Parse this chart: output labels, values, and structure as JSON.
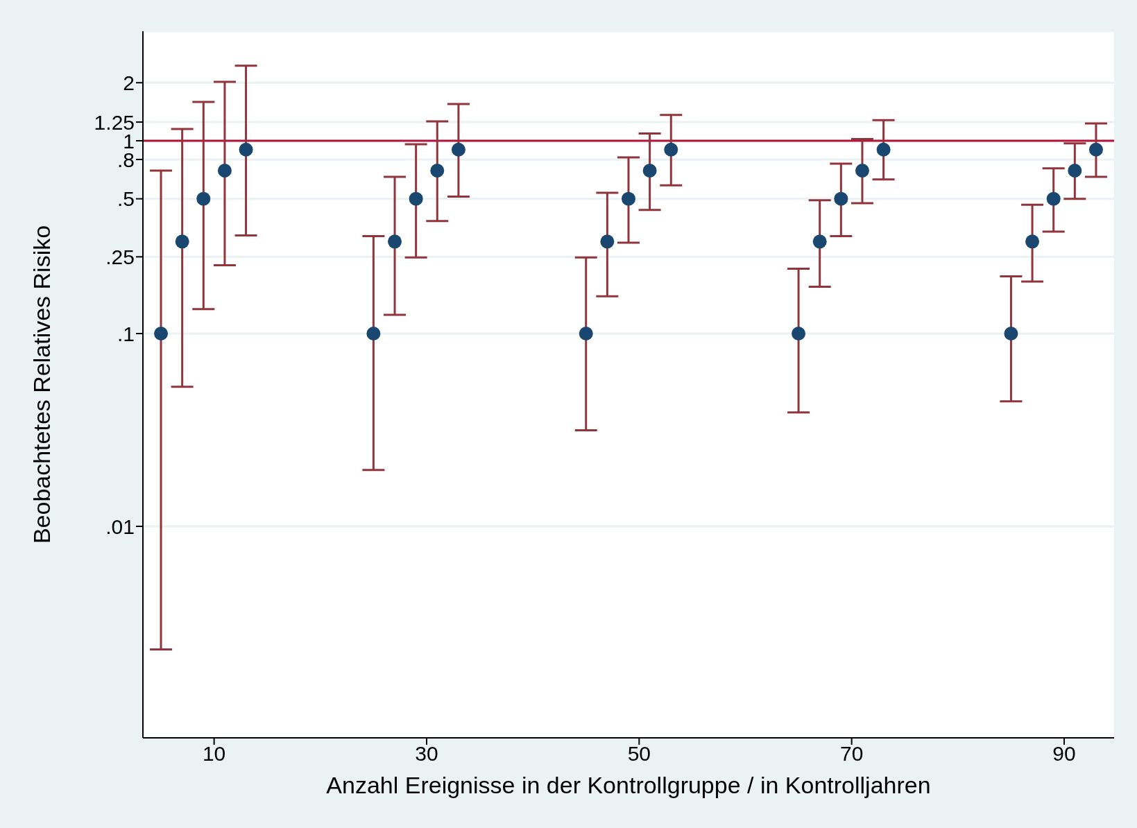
{
  "chart_data": {
    "type": "scatter",
    "xlabel": "Anzahl Ereignisse in der Kontrollgruppe / in Kontrolljahren",
    "ylabel": "Beobachtetes Relatives Risiko",
    "x": [
      5,
      7,
      9,
      11,
      13,
      25,
      27,
      29,
      31,
      33,
      45,
      47,
      49,
      51,
      53,
      65,
      67,
      69,
      71,
      73,
      85,
      87,
      89,
      91,
      93
    ],
    "series": [
      {
        "color": "#1a476f",
        "values": [
          0.1,
          0.3,
          0.5,
          0.7,
          0.9,
          0.1,
          0.3,
          0.5,
          0.7,
          0.9,
          0.1,
          0.3,
          0.5,
          0.7,
          0.9,
          0.1,
          0.3,
          0.5,
          0.7,
          0.9,
          0.1,
          0.3,
          0.5,
          0.7,
          0.9
        ],
        "errors": [
          [
            0.0023,
            0.7
          ],
          [
            0.053,
            1.15
          ],
          [
            0.134,
            1.59
          ],
          [
            0.226,
            2.02
          ],
          [
            0.323,
            2.45
          ],
          [
            0.0196,
            0.32
          ],
          [
            0.125,
            0.65
          ],
          [
            0.248,
            0.96
          ],
          [
            0.383,
            1.26
          ],
          [
            0.513,
            1.55
          ],
          [
            0.0315,
            0.248
          ],
          [
            0.156,
            0.537
          ],
          [
            0.296,
            0.82
          ],
          [
            0.438,
            1.09
          ],
          [
            0.587,
            1.36
          ],
          [
            0.039,
            0.217
          ],
          [
            0.175,
            0.491
          ],
          [
            0.32,
            0.76
          ],
          [
            0.474,
            1.02
          ],
          [
            0.63,
            1.28
          ],
          [
            0.0445,
            0.198
          ],
          [
            0.186,
            0.466
          ],
          [
            0.338,
            0.72
          ],
          [
            0.5,
            0.97
          ],
          [
            0.65,
            1.23
          ]
        ]
      }
    ],
    "log": "y",
    "xlim": [
      3.3,
      94.7
    ],
    "xticks": [
      10,
      30,
      50,
      70,
      90
    ],
    "ylim": [
      0.0008,
      3.7
    ],
    "yticks": [
      {
        "value": 0.01,
        "label": ".01"
      },
      {
        "value": 0.1,
        "label": ".1"
      },
      {
        "value": 0.25,
        "label": ".25"
      },
      {
        "value": 0.5,
        "label": ".5"
      },
      {
        "value": 0.8,
        "label": ".8"
      },
      1,
      1.25,
      2
    ],
    "grid": "y",
    "marker": "circle",
    "ref_lines": [
      {
        "axis": "y",
        "value": 1,
        "color": "#b5123c"
      }
    ]
  }
}
